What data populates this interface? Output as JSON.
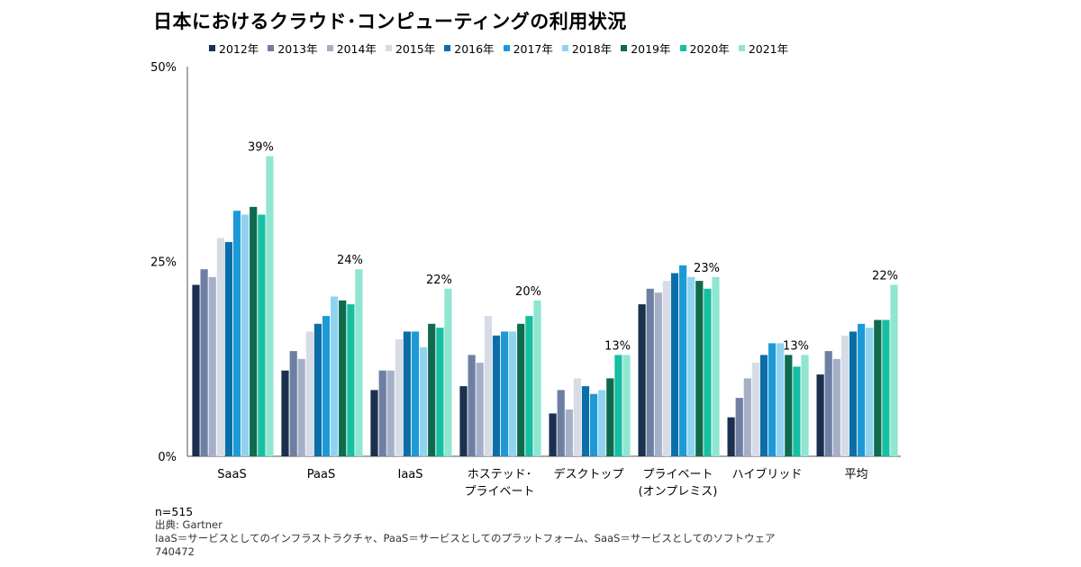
{
  "title": "日本におけるクラウド･コンピューティングの利用状況",
  "colors": {
    "2012年": "#1b2f4e",
    "2013年": "#6e7fa3",
    "2014年": "#a5b0c8",
    "2015年": "#d6dbe6",
    "2016年": "#0b6ea8",
    "2017年": "#1d9ad6",
    "2018年": "#8fd3f1",
    "2019年": "#0f6a4e",
    "2020年": "#16bfa2",
    "2021年": "#8fe6d1"
  },
  "chart_data": {
    "type": "bar",
    "title": "日本におけるクラウド･コンピューティングの利用状況",
    "categories": [
      "SaaS",
      "PaaS",
      "IaaS",
      "ホステッド･\nプライベート",
      "デスクトップ",
      "プライベート\n(オンプレミス)",
      "ハイブリッド",
      "平均"
    ],
    "y_ticks": [
      "50%",
      "25%",
      "0%"
    ],
    "ylim": [
      0,
      50
    ],
    "legend_position": "top",
    "series": [
      {
        "name": "2012年",
        "values": [
          22,
          11,
          8.5,
          9,
          5.5,
          19.5,
          5,
          10.5
        ]
      },
      {
        "name": "2013年",
        "values": [
          24,
          13.5,
          11,
          13,
          8.5,
          21.5,
          7.5,
          13.5
        ]
      },
      {
        "name": "2014年",
        "values": [
          23,
          12.5,
          11,
          12,
          6,
          21,
          10,
          12.5
        ]
      },
      {
        "name": "2015年",
        "values": [
          28,
          16,
          15,
          18,
          10,
          22.5,
          12,
          15.5
        ]
      },
      {
        "name": "2016年",
        "values": [
          27.5,
          17,
          16,
          15.5,
          9,
          23.5,
          13,
          16
        ]
      },
      {
        "name": "2017年",
        "values": [
          31.5,
          18,
          16,
          16,
          8,
          24.5,
          14.5,
          17
        ]
      },
      {
        "name": "2018年",
        "values": [
          31,
          20.5,
          14,
          16,
          8.5,
          23,
          14.5,
          16.5
        ]
      },
      {
        "name": "2019年",
        "values": [
          32,
          20,
          17,
          17,
          10,
          22.5,
          13,
          17.5
        ]
      },
      {
        "name": "2020年",
        "values": [
          31,
          19.5,
          16.5,
          18,
          13,
          21.5,
          11.5,
          17.5
        ]
      },
      {
        "name": "2021年",
        "values": [
          38.5,
          24,
          21.5,
          20,
          13,
          23,
          13,
          22
        ]
      }
    ],
    "data_labels": [
      "39%",
      "24%",
      "22%",
      "20%",
      "13%",
      "23%",
      "13%",
      "22%"
    ]
  },
  "footer": {
    "n": "n=515",
    "source": "出典: Gartner",
    "note": "IaaS＝サービスとしてのインフラストラクチャ、PaaS＝サービスとしてのプラットフォーム、SaaS＝サービスとしてのソフトウェア",
    "id": "740472"
  }
}
